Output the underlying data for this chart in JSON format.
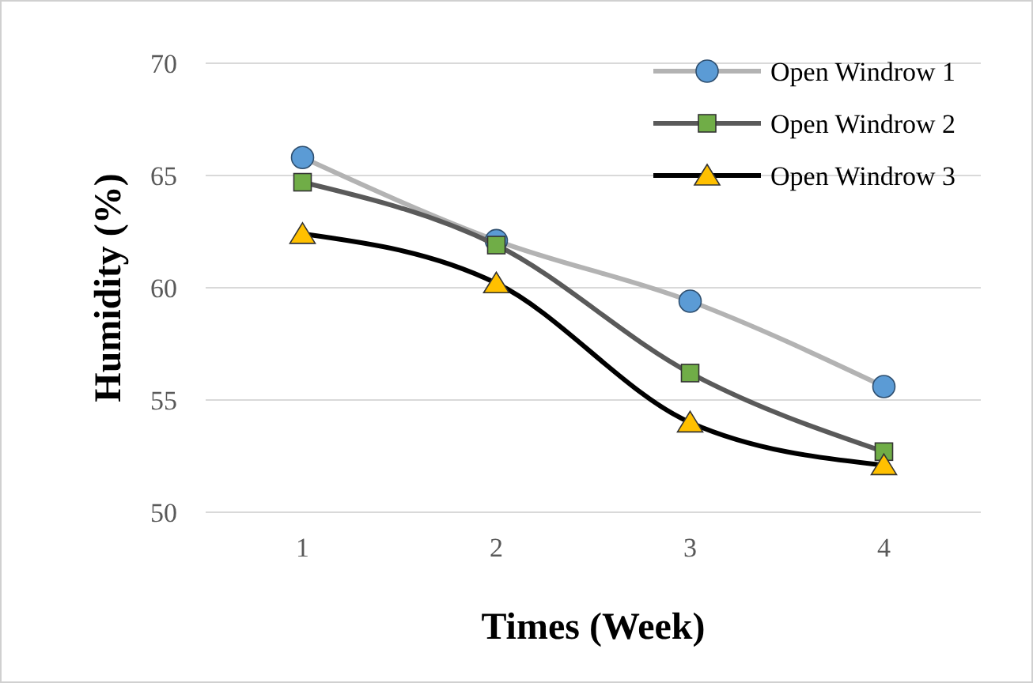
{
  "chart_data": {
    "type": "line",
    "xlabel": "Times (Week)",
    "ylabel": "Humidity (%)",
    "categories": [
      "1",
      "2",
      "3",
      "4"
    ],
    "ylim": [
      50,
      70
    ],
    "yticks": [
      50,
      55,
      60,
      65,
      70
    ],
    "grid": "y",
    "legend": "top right",
    "line_style": "solid",
    "series": [
      {
        "name": "Open Windrow 1",
        "color": "#b3b3b3",
        "marker": "circle",
        "colors": [
          "#5b9bd5",
          "#5b9bd5",
          "#5b9bd5",
          "#5b9bd5"
        ],
        "values": [
          65.8,
          62.1,
          59.4,
          55.6
        ]
      },
      {
        "name": "Open Windrow 2",
        "color": "#5a5a5a",
        "marker": "square",
        "colors": [
          "#70ad47",
          "#70ad47",
          "#70ad47",
          "#70ad47"
        ],
        "values": [
          64.7,
          61.9,
          56.2,
          52.7
        ]
      },
      {
        "name": "Open Windrow 3",
        "color": "#000000",
        "marker": "triangle",
        "colors": [
          "#ffc000",
          "#ffc000",
          "#ffc000",
          "#ffc000"
        ],
        "values": [
          62.4,
          60.2,
          54.0,
          52.1
        ]
      }
    ]
  }
}
